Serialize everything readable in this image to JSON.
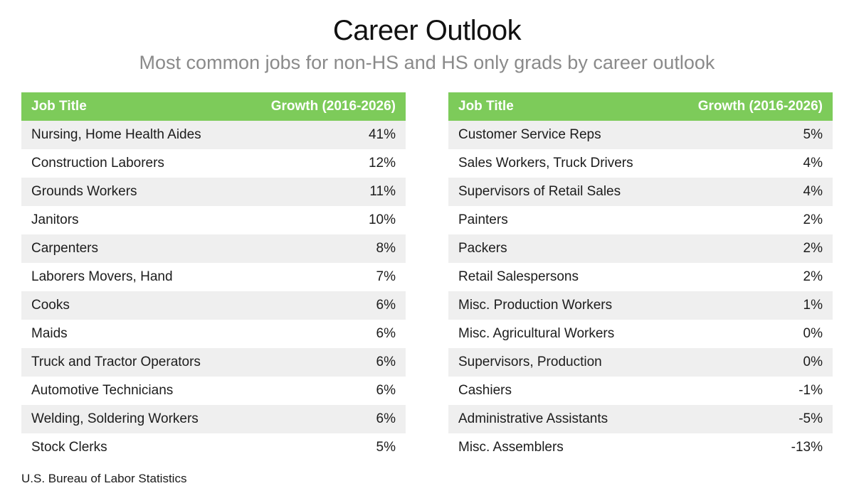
{
  "colors": {
    "header_bg": "#7dcb5a",
    "row_shade": "#efefef",
    "subtitle": "#8a8a8a"
  },
  "chart_data": {
    "type": "table",
    "title": "Career Outlook",
    "subtitle": "Most common jobs for non-HS and HS only grads by career outlook",
    "source": "U.S. Bureau of Labor Statistics",
    "tables": [
      {
        "columns": [
          "Job Title",
          "Growth (2016-2026)"
        ],
        "rows": [
          {
            "job": "Nursing, Home Health Aides",
            "growth": "41%"
          },
          {
            "job": "Construction Laborers",
            "growth": "12%"
          },
          {
            "job": "Grounds Workers",
            "growth": "11%"
          },
          {
            "job": "Janitors",
            "growth": "10%"
          },
          {
            "job": "Carpenters",
            "growth": "8%"
          },
          {
            "job": "Laborers Movers, Hand",
            "growth": "7%"
          },
          {
            "job": "Cooks",
            "growth": "6%"
          },
          {
            "job": "Maids",
            "growth": "6%"
          },
          {
            "job": "Truck and Tractor Operators",
            "growth": "6%"
          },
          {
            "job": "Automotive Technicians",
            "growth": "6%"
          },
          {
            "job": "Welding, Soldering Workers",
            "growth": "6%"
          },
          {
            "job": "Stock Clerks",
            "growth": "5%"
          }
        ]
      },
      {
        "columns": [
          "Job Title",
          "Growth (2016-2026)"
        ],
        "rows": [
          {
            "job": "Customer Service Reps",
            "growth": "5%"
          },
          {
            "job": "Sales Workers, Truck Drivers",
            "growth": "4%"
          },
          {
            "job": "Supervisors of Retail Sales",
            "growth": "4%"
          },
          {
            "job": "Painters",
            "growth": "2%"
          },
          {
            "job": "Packers",
            "growth": "2%"
          },
          {
            "job": "Retail Salespersons",
            "growth": "2%"
          },
          {
            "job": "Misc. Production Workers",
            "growth": "1%"
          },
          {
            "job": "Misc. Agricultural Workers",
            "growth": "0%"
          },
          {
            "job": "Supervisors, Production",
            "growth": "0%"
          },
          {
            "job": "Cashiers",
            "growth": "-1%"
          },
          {
            "job": "Administrative Assistants",
            "growth": "-5%"
          },
          {
            "job": "Misc. Assemblers",
            "growth": "-13%"
          }
        ]
      }
    ]
  }
}
